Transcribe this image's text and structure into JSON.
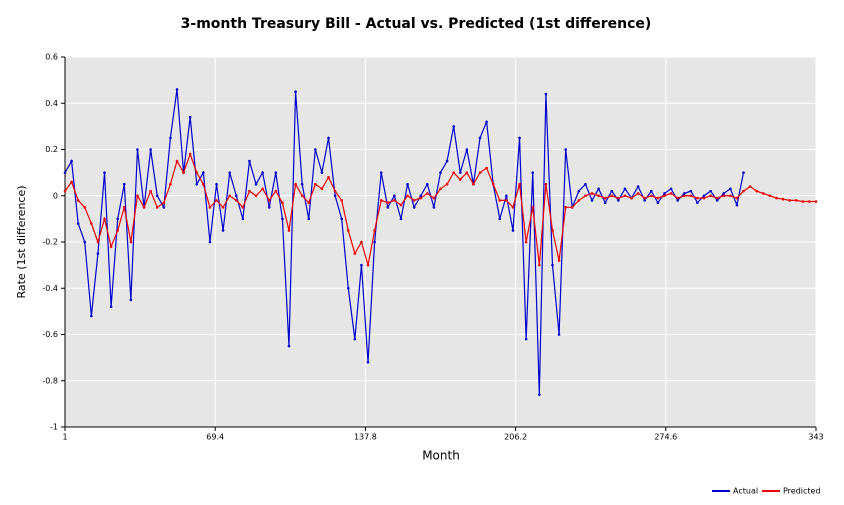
{
  "chart_data": {
    "type": "line",
    "title": "3-month Treasury Bill - Actual vs. Predicted (1st difference)",
    "x_label": "Month",
    "y_label": "Rate (1st difference)",
    "x": [
      1,
      4,
      7,
      10,
      13,
      16,
      19,
      22,
      25,
      28,
      31,
      34,
      37,
      40,
      43,
      46,
      49,
      52,
      55,
      58,
      61,
      64,
      67,
      70,
      73,
      76,
      79,
      82,
      85,
      88,
      91,
      94,
      97,
      100,
      103,
      106,
      109,
      112,
      115,
      118,
      121,
      124,
      127,
      130,
      133,
      136,
      139,
      142,
      145,
      148,
      151,
      154,
      157,
      160,
      163,
      166,
      169,
      172,
      175,
      178,
      181,
      184,
      187,
      190,
      193,
      196,
      199,
      202,
      205,
      208,
      211,
      214,
      217,
      220,
      223,
      226,
      229,
      232,
      235,
      238,
      241,
      244,
      247,
      250,
      253,
      256,
      259,
      262,
      265,
      268,
      271,
      274,
      277,
      280,
      283,
      286,
      289,
      292,
      295,
      298,
      301,
      304,
      307,
      310,
      313,
      316,
      319,
      322,
      325,
      328,
      331,
      334,
      337,
      340,
      343
    ],
    "series": [
      {
        "name": "Actual",
        "color": "#0000cc",
        "values": [
          0.1,
          0.15,
          -0.12,
          -0.2,
          -0.52,
          -0.25,
          0.1,
          -0.48,
          -0.1,
          0.05,
          -0.45,
          0.2,
          -0.05,
          0.2,
          0.0,
          -0.05,
          0.25,
          0.46,
          0.1,
          0.34,
          0.05,
          0.1,
          -0.2,
          0.05,
          -0.15,
          0.1,
          0.0,
          -0.1,
          0.15,
          0.05,
          0.1,
          -0.05,
          0.1,
          -0.1,
          -0.65,
          0.45,
          0.05,
          -0.1,
          0.2,
          0.1,
          0.25,
          0.0,
          -0.1,
          -0.4,
          -0.62,
          -0.3,
          -0.72,
          -0.2,
          0.1,
          -0.05,
          0.0,
          -0.1,
          0.05,
          -0.05,
          0.0,
          0.05,
          -0.05,
          0.1,
          0.15,
          0.3,
          0.1,
          0.2,
          0.05,
          0.25,
          0.32,
          0.05,
          -0.1,
          0.0,
          -0.15,
          0.25,
          -0.62,
          0.1,
          -0.86,
          0.44,
          -0.3,
          -0.6,
          0.2,
          -0.05,
          0.02,
          0.05,
          -0.02,
          0.03,
          -0.03,
          0.02,
          -0.02,
          0.03,
          -0.01,
          0.04,
          -0.02,
          0.02,
          -0.03,
          0.01,
          0.03,
          -0.02,
          0.01,
          0.02,
          -0.03,
          0.0,
          0.02,
          -0.02,
          0.01,
          0.03,
          -0.04,
          0.1,
          null,
          null,
          null,
          null,
          null,
          null,
          null,
          null,
          null,
          null,
          null
        ]
      },
      {
        "name": "Predicted",
        "color": "#ee0000",
        "values": [
          0.02,
          0.06,
          -0.02,
          -0.05,
          -0.12,
          -0.2,
          -0.1,
          -0.22,
          -0.15,
          -0.05,
          -0.2,
          0.0,
          -0.05,
          0.02,
          -0.05,
          -0.03,
          0.05,
          0.15,
          0.1,
          0.18,
          0.1,
          0.05,
          -0.05,
          -0.02,
          -0.05,
          0.0,
          -0.02,
          -0.05,
          0.02,
          0.0,
          0.03,
          -0.02,
          0.02,
          -0.03,
          -0.15,
          0.05,
          0.0,
          -0.03,
          0.05,
          0.03,
          0.08,
          0.02,
          -0.02,
          -0.15,
          -0.25,
          -0.2,
          -0.3,
          -0.15,
          -0.02,
          -0.03,
          -0.02,
          -0.04,
          0.0,
          -0.02,
          -0.01,
          0.01,
          -0.01,
          0.03,
          0.05,
          0.1,
          0.07,
          0.1,
          0.05,
          0.1,
          0.12,
          0.05,
          -0.02,
          -0.02,
          -0.05,
          0.05,
          -0.2,
          -0.05,
          -0.3,
          0.05,
          -0.15,
          -0.28,
          -0.05,
          -0.05,
          -0.02,
          0.0,
          0.01,
          0.0,
          -0.01,
          0.0,
          -0.01,
          0.0,
          -0.01,
          0.01,
          -0.01,
          0.0,
          -0.01,
          0.0,
          0.01,
          -0.01,
          0.0,
          0.0,
          -0.01,
          -0.01,
          0.0,
          -0.01,
          0.0,
          0.0,
          -0.01,
          0.02,
          0.04,
          0.02,
          0.01,
          0.0,
          -0.01,
          -0.015,
          -0.02,
          -0.02,
          -0.025,
          -0.025,
          -0.025
        ]
      }
    ],
    "xlim": [
      1,
      343
    ],
    "xticks": [
      1,
      69.4,
      137.8,
      206.2,
      274.6,
      343
    ],
    "ylim": [
      -1,
      0.6
    ],
    "yticks": [
      0.6,
      0.4,
      0.2,
      0,
      -0.2,
      -0.4,
      -0.6,
      -0.8,
      -1
    ],
    "grid": true,
    "legend": "bottom-right"
  }
}
